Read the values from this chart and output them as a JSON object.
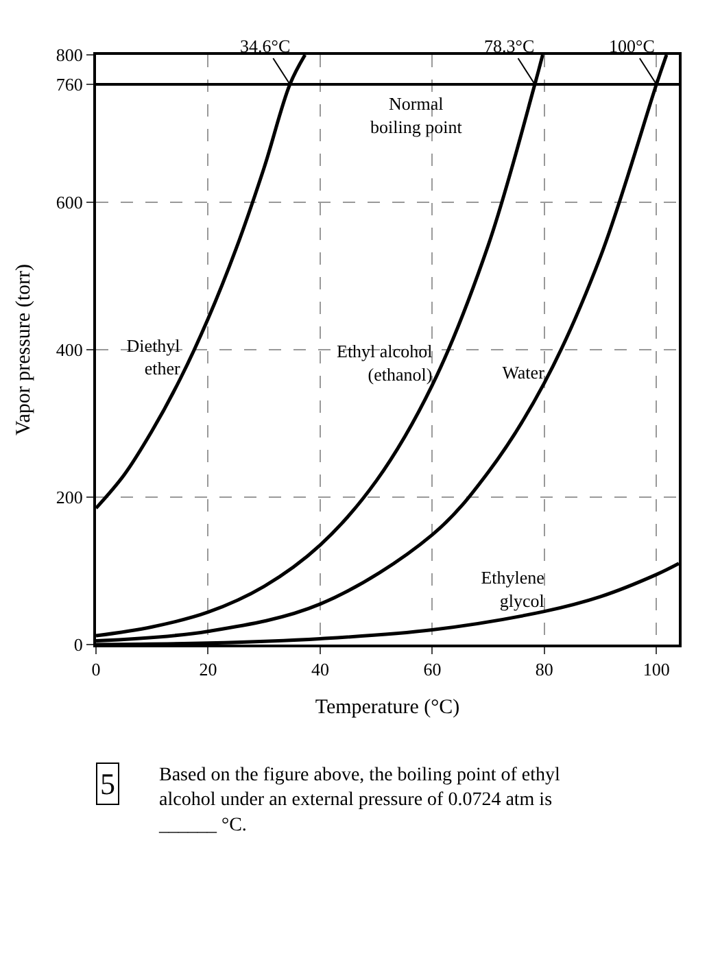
{
  "chart_data": {
    "type": "line",
    "xlabel": "Temperature (°C)",
    "ylabel": "Vapor pressure (torr)",
    "xlim": [
      0,
      104
    ],
    "xticks": [
      0,
      20,
      40,
      60,
      80,
      100
    ],
    "ylim": [
      0,
      800
    ],
    "yticks": [
      0,
      200,
      400,
      600,
      760,
      800
    ],
    "series": [
      {
        "name": "Diethyl ether",
        "color": "#000000",
        "x": [
          0,
          5,
          10,
          15,
          20,
          25,
          30,
          34.6,
          37.3
        ],
        "values": [
          185,
          230,
          290,
          360,
          442,
          537,
          647,
          760,
          800
        ]
      },
      {
        "name": "Ethyl alcohol (ethanol)",
        "color": "#000000",
        "x": [
          0,
          10,
          20,
          30,
          40,
          50,
          60,
          70,
          78.3,
          79.7
        ],
        "values": [
          12,
          24,
          44,
          79,
          135,
          222,
          352,
          542,
          760,
          800
        ]
      },
      {
        "name": "Water",
        "color": "#000000",
        "x": [
          0,
          20,
          40,
          60,
          70,
          80,
          90,
          100,
          101.8
        ],
        "values": [
          5,
          18,
          55,
          149,
          234,
          355,
          526,
          760,
          800
        ]
      },
      {
        "name": "Ethylene glycol",
        "color": "#000000",
        "x": [
          0,
          20,
          40,
          60,
          80,
          90,
          100,
          104
        ],
        "values": [
          0,
          2,
          8,
          20,
          45,
          65,
          95,
          110
        ]
      }
    ],
    "ref_lines": [
      {
        "axis": "y",
        "value": 760,
        "label": "Normal boiling point",
        "color": "#000000",
        "line_style": "solid"
      }
    ],
    "annotations": [
      {
        "text": "34.6°C",
        "x": 34.6,
        "y": 760
      },
      {
        "text": "78.3°C",
        "x": 78.3,
        "y": 760
      },
      {
        "text": "100°C",
        "x": 100,
        "y": 760
      },
      "5",
      "Based on the figure above, the boiling point of ethyl alcohol under an external pressure of 0.0724 atm is ______ °C."
    ],
    "grid": true,
    "legend": false,
    "marker": "none",
    "line_style": "solid"
  }
}
